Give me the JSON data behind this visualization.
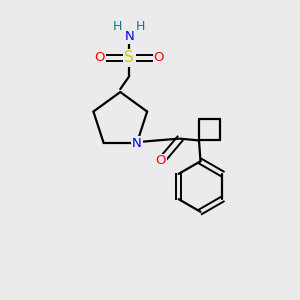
{
  "bg_color": "#ebebeb",
  "atom_colors": {
    "C": "#000000",
    "N": "#0000ee",
    "O": "#ff0000",
    "S": "#cccc00",
    "H": "#008080"
  },
  "line_color": "#000000",
  "line_width": 1.6,
  "fig_size": [
    3.0,
    3.0
  ],
  "dpi": 100,
  "xlim": [
    0,
    10
  ],
  "ylim": [
    0,
    10
  ]
}
